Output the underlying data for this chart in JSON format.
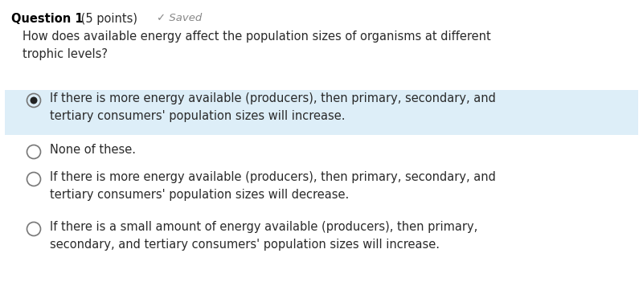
{
  "bg_color": "#ffffff",
  "header_text": "Question 1",
  "header_points": " (5 points)",
  "saved_text": "✓ Saved",
  "question": "How does available energy affect the population sizes of organisms at different\ntrophic levels?",
  "options": [
    {
      "text": "If there is more energy available (producers), then primary, secondary, and\ntertiary consumers' population sizes will increase.",
      "selected": true,
      "highlight_bg": "#ddeef8"
    },
    {
      "text": "None of these.",
      "selected": false,
      "highlight_bg": null
    },
    {
      "text": "If there is more energy available (producers), then primary, secondary, and\ntertiary consumers' population sizes will decrease.",
      "selected": false,
      "highlight_bg": null
    },
    {
      "text": "If there is a small amount of energy available (producers), then primary,\nsecondary, and tertiary consumers' population sizes will increase.",
      "selected": false,
      "highlight_bg": null
    }
  ],
  "font_size_header": 10.5,
  "font_size_question": 10.5,
  "font_size_option": 10.5,
  "text_color": "#2a2a2a",
  "saved_color": "#888888",
  "radio_color": "#777777",
  "selected_radio_fill": "#222222",
  "header_bold_color": "#000000"
}
